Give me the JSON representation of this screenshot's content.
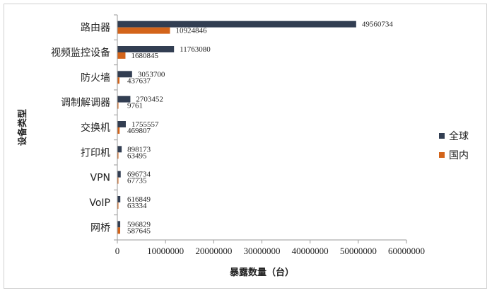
{
  "chart_data": {
    "type": "bar",
    "orientation": "horizontal",
    "categories": [
      "路由器",
      "视频监控设备",
      "防火墙",
      "调制解调器",
      "交换机",
      "打印机",
      "VPN",
      "VoIP",
      "网桥"
    ],
    "series": [
      {
        "name": "全球",
        "color": "#323e52",
        "values": [
          49560734,
          11763080,
          3053700,
          2703452,
          1755557,
          898173,
          696734,
          616849,
          596829
        ]
      },
      {
        "name": "国内",
        "color": "#d3641a",
        "values": [
          10924846,
          1680845,
          437637,
          9761,
          469807,
          63495,
          67735,
          63334,
          587645
        ]
      }
    ],
    "value_labels": [
      [
        "49560734",
        "11763080",
        "3053700",
        "2703452",
        "1755557",
        "898173",
        "696734",
        "616849",
        "596829"
      ],
      [
        "10924846",
        "1680845",
        "437637",
        "9761",
        "469807",
        "63495",
        "67735",
        "63334",
        "587645"
      ]
    ],
    "xlim": [
      0,
      60000000
    ],
    "x_ticks": [
      0,
      10000000,
      20000000,
      30000000,
      40000000,
      50000000,
      60000000
    ],
    "x_tick_labels": [
      "0",
      "10000000",
      "20000000",
      "30000000",
      "40000000",
      "50000000",
      "60000000"
    ],
    "xlabel": "暴露数量（台）",
    "ylabel": "设备类型",
    "title": "",
    "grid": false,
    "legend_position": "right"
  }
}
